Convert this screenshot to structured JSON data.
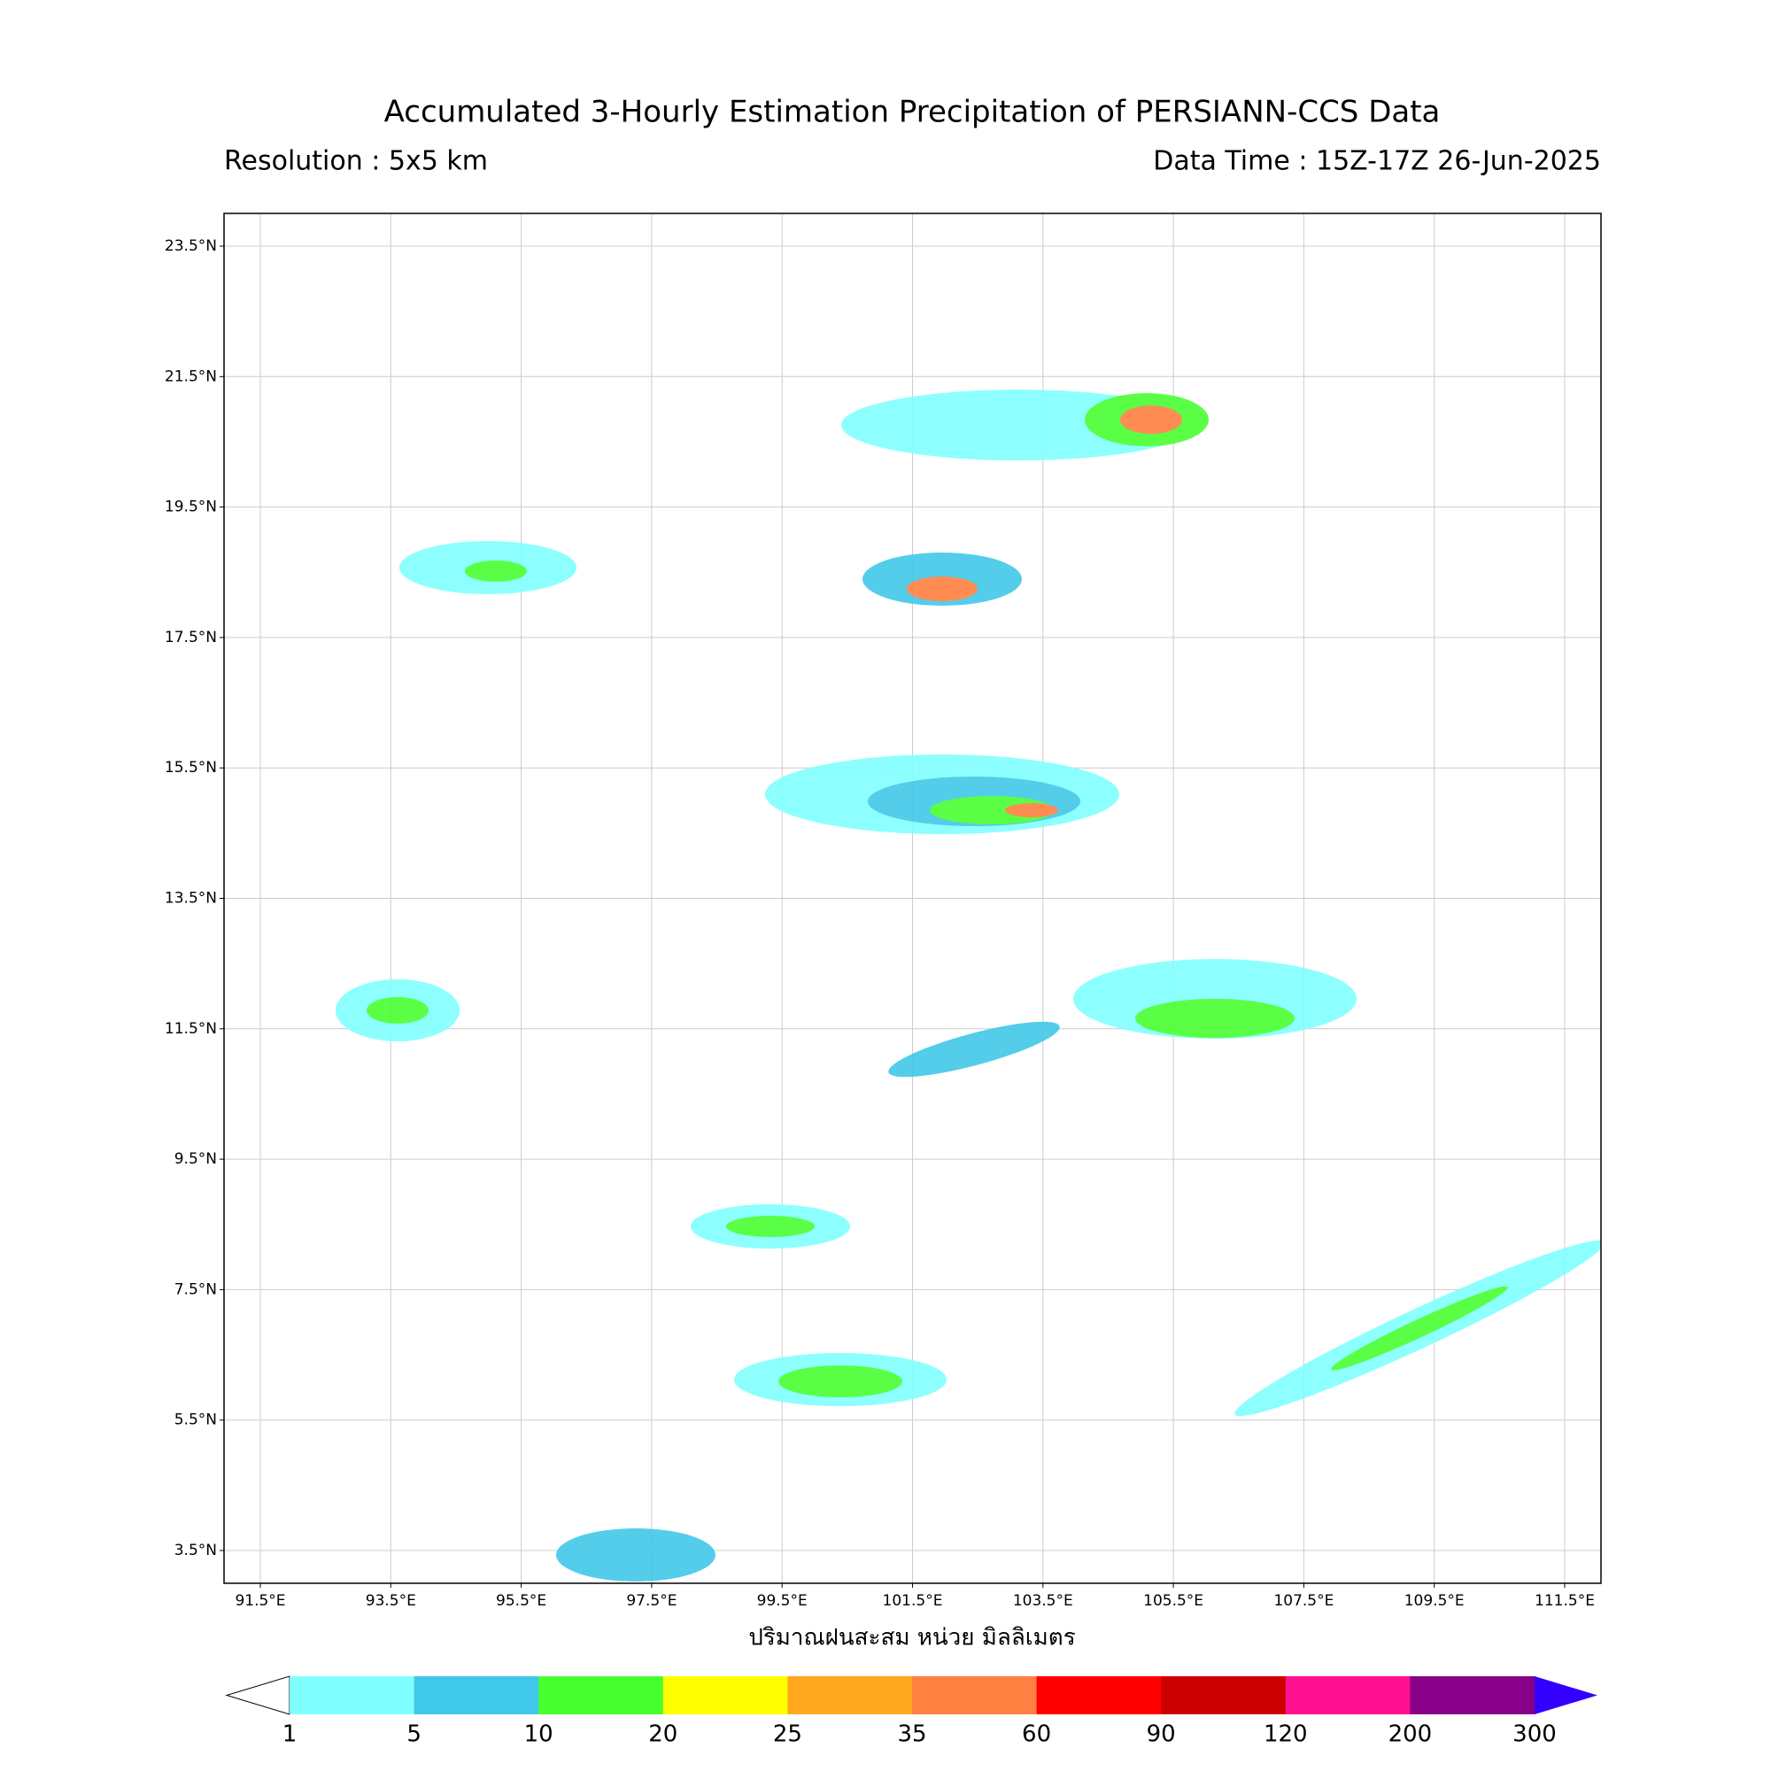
{
  "map": {
    "title": "Accumulated 3-Hourly Estimation Precipitation of PERSIANN-CCS Data",
    "resolution": "Resolution : 5x5 km",
    "data_time": "Data Time : 15Z-17Z 26-Jun-2025",
    "lat_ticks": [
      {
        "value": 23.5,
        "label": "23.5°N"
      },
      {
        "value": 21.5,
        "label": "21.5°N"
      },
      {
        "value": 19.5,
        "label": "19.5°N"
      },
      {
        "value": 17.5,
        "label": "17.5°N"
      },
      {
        "value": 15.5,
        "label": "15.5°N"
      },
      {
        "value": 13.5,
        "label": "13.5°N"
      },
      {
        "value": 11.5,
        "label": "11.5°N"
      },
      {
        "value": 9.5,
        "label": "9.5°N"
      },
      {
        "value": 7.5,
        "label": "7.5°N"
      },
      {
        "value": 5.5,
        "label": "5.5°N"
      },
      {
        "value": 3.5,
        "label": "3.5°N"
      }
    ],
    "lon_ticks": [
      {
        "value": 91.5,
        "label": "91.5°E"
      },
      {
        "value": 93.5,
        "label": "93.5°E"
      },
      {
        "value": 95.5,
        "label": "95.5°E"
      },
      {
        "value": 97.5,
        "label": "97.5°E"
      },
      {
        "value": 99.5,
        "label": "99.5°E"
      },
      {
        "value": 101.5,
        "label": "101.5°E"
      },
      {
        "value": 103.5,
        "label": "103.5°E"
      },
      {
        "value": 105.5,
        "label": "105.5°E"
      },
      {
        "value": 107.5,
        "label": "107.5°E"
      },
      {
        "value": 109.5,
        "label": "109.5°E"
      },
      {
        "value": 111.5,
        "label": "111.5°E"
      }
    ],
    "x_label": "ปริมาณฝนสะสม หน่วย มิลลิเมตร",
    "colorbar": {
      "levels": [
        1,
        5,
        10,
        20,
        25,
        35,
        60,
        90,
        120,
        200,
        300
      ],
      "colors": [
        "#80ffff",
        "#40c8e8",
        "#48ff30",
        "#ffff00",
        "#ffa820",
        "#ff8040",
        "#ff0000",
        "#cc0000",
        "#ff1090",
        "#880088"
      ],
      "under_color": "#ffffff",
      "over_color": "#3300ff"
    }
  }
}
